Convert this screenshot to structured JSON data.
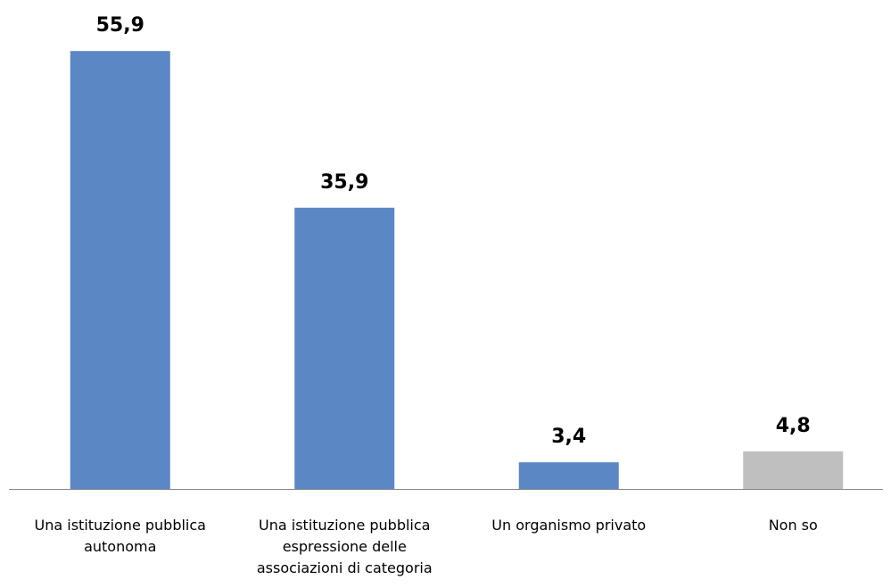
{
  "chart_data": {
    "type": "bar",
    "categories": [
      "Una istituzione pubblica autonoma",
      "Una istituzione pubblica espressione delle associazioni di categoria",
      "Un organismo privato",
      "Non so"
    ],
    "values": [
      55.9,
      35.9,
      3.4,
      4.8
    ],
    "value_labels": [
      "55,9",
      "35,9",
      "3,4",
      "4,8"
    ],
    "colors": [
      "#5b87c5",
      "#5b87c5",
      "#5b87c5",
      "#bfbfbf"
    ]
  }
}
